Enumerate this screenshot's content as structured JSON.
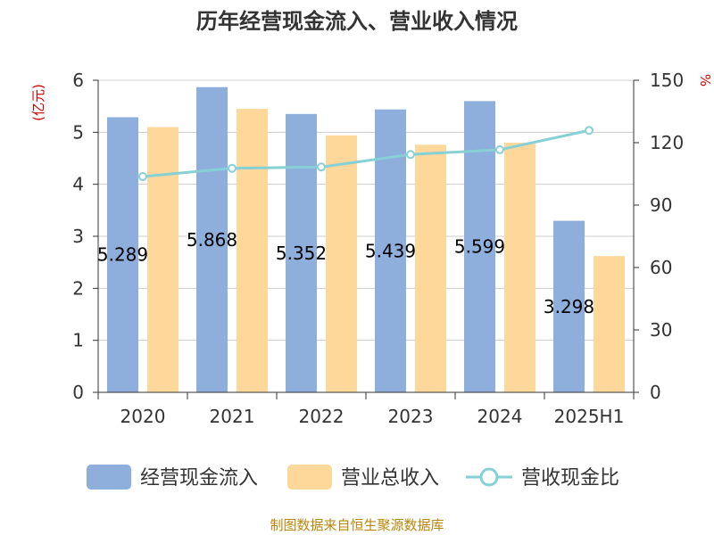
{
  "chart_data": {
    "type": "bar",
    "title": "历年经营现金流入、营业收入情况",
    "categories": [
      "2020",
      "2021",
      "2022",
      "2023",
      "2024",
      "2025H1"
    ],
    "series": [
      {
        "name": "经营现金流入",
        "kind": "bar",
        "axis": "left",
        "color": "#8eaedb",
        "values": [
          5.289,
          5.868,
          5.352,
          5.439,
          5.599,
          3.298
        ],
        "labels": [
          "5.289",
          "5.868",
          "5.352",
          "5.439",
          "5.599",
          "3.298"
        ]
      },
      {
        "name": "营业总收入",
        "kind": "bar",
        "axis": "left",
        "color": "#fed89b",
        "values": [
          5.1,
          5.45,
          4.94,
          4.76,
          4.8,
          2.62
        ]
      },
      {
        "name": "营收现金比",
        "kind": "line",
        "axis": "right",
        "color": "#86d0d6",
        "values": [
          103.7,
          107.7,
          108.3,
          114.3,
          116.6,
          125.9
        ]
      }
    ],
    "ylabel": "(亿元)",
    "y2label": "%",
    "ylim": [
      0,
      6
    ],
    "y2lim": [
      0,
      150
    ],
    "yticks": [
      "0",
      "1",
      "2",
      "3",
      "4",
      "5",
      "6"
    ],
    "y2ticks": [
      "0",
      "30",
      "60",
      "90",
      "120",
      "150"
    ],
    "grid": true,
    "legend_position": "bottom"
  },
  "source": "制图数据来自恒生聚源数据库"
}
